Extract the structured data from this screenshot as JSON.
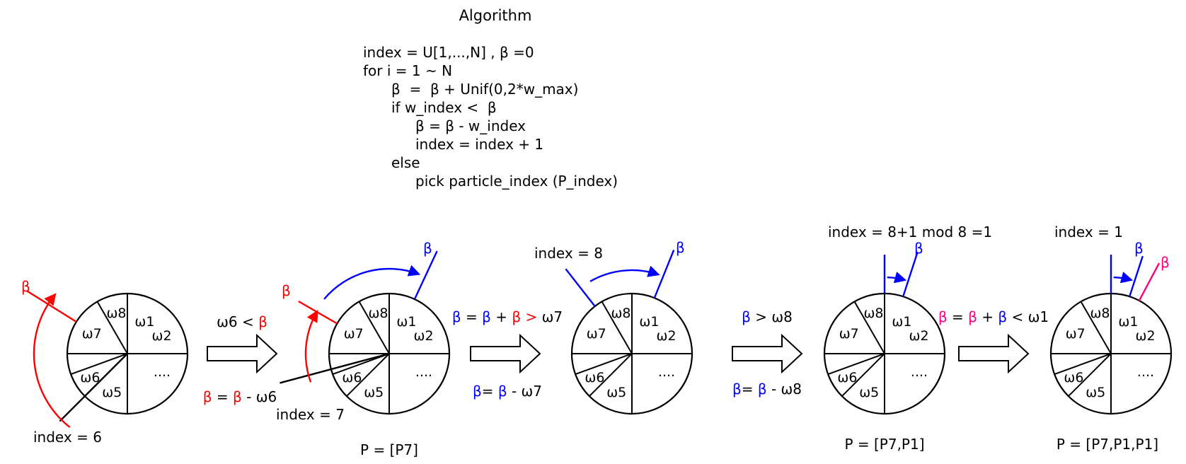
{
  "algorithm": {
    "title": "Algorithm",
    "lines": [
      "index = U[1,...,N] , β =0",
      "for i = 1 ~ N",
      "β  =  β + Unif(0,2*w_max)",
      "if w_index <  β",
      "β = β - w_index",
      "index = index + 1",
      "else",
      "pick particle_index (P_index)"
    ]
  },
  "slice_labels": [
    "ω8",
    "ω1",
    "ω2",
    "....",
    "ω5",
    "ω6",
    "ω7"
  ],
  "colors": {
    "red": "#ff0000",
    "blue": "#0000ff",
    "magenta": "#ff0080",
    "black": "#000000"
  },
  "stages": [
    {
      "beta": "β",
      "index": "index = 6"
    },
    {
      "beta": "β",
      "beta2": "β",
      "index": "index = 7",
      "P": "P = [P7]"
    },
    {
      "beta": "β",
      "index": "index = 8"
    },
    {
      "beta": "β",
      "index": "index = 8+1 mod 8 =1",
      "P": "P = [P7,P1]"
    },
    {
      "beta_blue": "β",
      "beta_magenta": "β",
      "index": "index = 1",
      "P": "P = [P7,P1,P1]"
    }
  ],
  "transitions": [
    {
      "top": [
        "ω6 < ",
        "β"
      ],
      "bottom": [
        "β",
        " = ",
        "β",
        " - ω6"
      ]
    },
    {
      "top": [
        "β",
        " = ",
        "β",
        " + ",
        "β",
        " > ",
        "ω7"
      ],
      "bottom": [
        "β",
        "= ",
        "β",
        " - ω7"
      ]
    },
    {
      "top": [
        "β",
        " > ω8"
      ],
      "bottom": [
        "β",
        "= ",
        "β",
        " - ω8"
      ]
    },
    {
      "top": [
        "β",
        " = ",
        "β",
        " + ",
        "β",
        " < ω1"
      ]
    }
  ]
}
